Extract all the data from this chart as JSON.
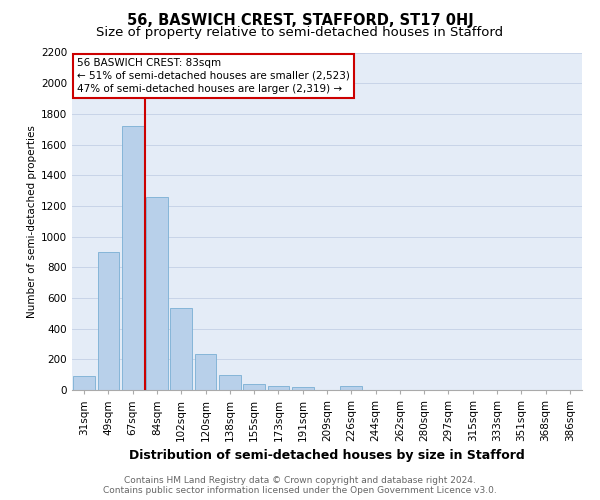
{
  "title": "56, BASWICH CREST, STAFFORD, ST17 0HJ",
  "subtitle": "Size of property relative to semi-detached houses in Stafford",
  "xlabel": "Distribution of semi-detached houses by size in Stafford",
  "ylabel": "Number of semi-detached properties",
  "footer_line1": "Contains HM Land Registry data © Crown copyright and database right 2024.",
  "footer_line2": "Contains public sector information licensed under the Open Government Licence v3.0.",
  "categories": [
    "31sqm",
    "49sqm",
    "67sqm",
    "84sqm",
    "102sqm",
    "120sqm",
    "138sqm",
    "155sqm",
    "173sqm",
    "191sqm",
    "209sqm",
    "226sqm",
    "244sqm",
    "262sqm",
    "280sqm",
    "297sqm",
    "315sqm",
    "333sqm",
    "351sqm",
    "368sqm",
    "386sqm"
  ],
  "values": [
    90,
    900,
    1720,
    1260,
    535,
    235,
    100,
    40,
    25,
    20,
    0,
    25,
    0,
    0,
    0,
    0,
    0,
    0,
    0,
    0,
    0
  ],
  "bar_color": "#b8d0ea",
  "bar_edge_color": "#7aafd4",
  "vline_color": "#cc0000",
  "vline_x": 3.0,
  "annotation_line1": "56 BASWICH CREST: 83sqm",
  "annotation_line2": "← 51% of semi-detached houses are smaller (2,523)",
  "annotation_line3": "47% of semi-detached houses are larger (2,319) →",
  "annotation_box_edge_color": "#cc0000",
  "ylim": [
    0,
    2200
  ],
  "yticks": [
    0,
    200,
    400,
    600,
    800,
    1000,
    1200,
    1400,
    1600,
    1800,
    2000,
    2200
  ],
  "grid_color": "#c8d4e8",
  "bg_color": "#e4ecf7",
  "title_fontsize": 10.5,
  "subtitle_fontsize": 9.5,
  "xlabel_fontsize": 9,
  "ylabel_fontsize": 7.5,
  "tick_fontsize": 7.5,
  "annotation_fontsize": 7.5,
  "footer_fontsize": 6.5,
  "footer_color": "#666666"
}
